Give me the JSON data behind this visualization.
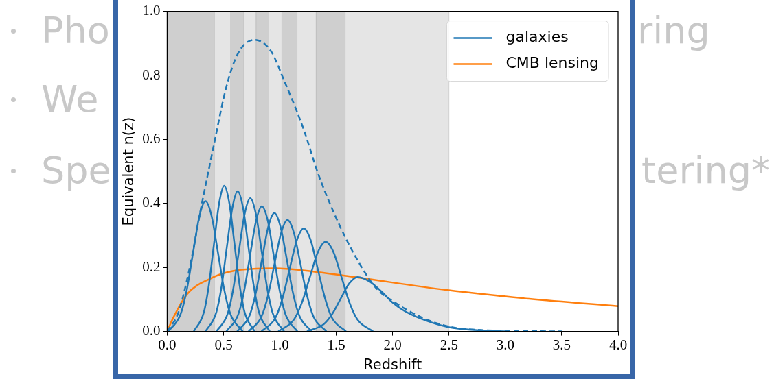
{
  "chart_data": {
    "type": "line",
    "xlabel": "Redshift",
    "ylabel": "Equivalent n(z)",
    "xlim": [
      0,
      4
    ],
    "ylim": [
      0,
      1
    ],
    "xticks": [
      {
        "value": 0,
        "label": "0.0"
      },
      {
        "value": 0.5,
        "label": "0.5"
      },
      {
        "value": 1,
        "label": "1.0"
      },
      {
        "value": 1.5,
        "label": "1.5"
      },
      {
        "value": 2,
        "label": "2.0"
      },
      {
        "value": 2.5,
        "label": "2.5"
      },
      {
        "value": 3,
        "label": "3.0"
      },
      {
        "value": 3.5,
        "label": "3.5"
      },
      {
        "value": 4,
        "label": "4.0"
      }
    ],
    "yticks": [
      {
        "value": 0,
        "label": "0.0"
      },
      {
        "value": 0.2,
        "label": "0.2"
      },
      {
        "value": 0.4,
        "label": "0.4"
      },
      {
        "value": 0.6,
        "label": "0.6"
      },
      {
        "value": 0.8,
        "label": "0.8"
      },
      {
        "value": 1,
        "label": "1.0"
      }
    ],
    "grid": false,
    "legend": "top right",
    "marker": "none",
    "line_style": "solid",
    "bands": [
      {
        "axis": "x",
        "from": 0,
        "to": 2.5,
        "color": "#e5e5e5"
      },
      {
        "axis": "x",
        "from": 0,
        "to": 0.419,
        "color": "#cfcfcf"
      },
      {
        "axis": "x",
        "from": 0.563,
        "to": 0.681,
        "color": "#cfcfcf"
      },
      {
        "axis": "x",
        "from": 0.788,
        "to": 0.902,
        "color": "#cfcfcf"
      },
      {
        "axis": "x",
        "from": 1.017,
        "to": 1.152,
        "color": "#cfcfcf"
      },
      {
        "axis": "x",
        "from": 1.321,
        "to": 1.579,
        "color": "#cfcfcf"
      }
    ],
    "series": [
      {
        "name": "galaxies",
        "color": "#1f77b4",
        "x": [
          0.01,
          0.12,
          0.175,
          0.23,
          0.285,
          0.34,
          0.395,
          0.45,
          0.505,
          0.56,
          0.67
        ],
        "values": [
          0,
          0.055,
          0.132,
          0.247,
          0.359,
          0.407,
          0.359,
          0.247,
          0.132,
          0.055,
          0
        ]
      },
      {
        "color": "#1f77b4",
        "x": [
          0.236,
          0.326,
          0.371,
          0.416,
          0.461,
          0.506,
          0.551,
          0.596,
          0.641,
          0.686,
          0.776
        ],
        "values": [
          0,
          0.061,
          0.148,
          0.276,
          0.401,
          0.455,
          0.401,
          0.276,
          0.148,
          0.061,
          0
        ]
      },
      {
        "color": "#1f77b4",
        "x": [
          0.34,
          0.435,
          0.483,
          0.53,
          0.578,
          0.625,
          0.673,
          0.72,
          0.768,
          0.815,
          0.91
        ],
        "values": [
          0,
          0.059,
          0.142,
          0.266,
          0.386,
          0.438,
          0.386,
          0.266,
          0.142,
          0.059,
          0
        ]
      },
      {
        "color": "#1f77b4",
        "x": [
          0.437,
          0.537,
          0.587,
          0.637,
          0.687,
          0.737,
          0.787,
          0.837,
          0.887,
          0.937,
          1.037
        ],
        "values": [
          0,
          0.056,
          0.135,
          0.253,
          0.367,
          0.416,
          0.367,
          0.253,
          0.135,
          0.056,
          0
        ]
      },
      {
        "color": "#1f77b4",
        "x": [
          0.525,
          0.63,
          0.683,
          0.735,
          0.788,
          0.84,
          0.893,
          0.945,
          0.998,
          1.05,
          1.155
        ],
        "values": [
          0,
          0.053,
          0.127,
          0.237,
          0.345,
          0.391,
          0.345,
          0.237,
          0.127,
          0.053,
          0
        ]
      },
      {
        "color": "#1f77b4",
        "x": [
          0.621,
          0.731,
          0.786,
          0.841,
          0.896,
          0.951,
          1.006,
          1.061,
          1.116,
          1.171,
          1.281
        ],
        "values": [
          0,
          0.05,
          0.12,
          0.225,
          0.326,
          0.37,
          0.326,
          0.225,
          0.12,
          0.05,
          0
        ]
      },
      {
        "color": "#1f77b4",
        "x": [
          0.722,
          0.837,
          0.895,
          0.952,
          1.01,
          1.067,
          1.125,
          1.182,
          1.24,
          1.297,
          1.412
        ],
        "values": [
          0,
          0.047,
          0.113,
          0.211,
          0.307,
          0.348,
          0.307,
          0.211,
          0.113,
          0.047,
          0
        ]
      },
      {
        "color": "#1f77b4",
        "x": [
          0.836,
          0.961,
          1.024,
          1.086,
          1.149,
          1.211,
          1.274,
          1.336,
          1.399,
          1.461,
          1.586
        ],
        "values": [
          0,
          0.043,
          0.105,
          0.195,
          0.284,
          0.322,
          0.284,
          0.195,
          0.105,
          0.043,
          0
        ]
      },
      {
        "color": "#1f77b4",
        "x": [
          0.986,
          1.126,
          1.196,
          1.266,
          1.336,
          1.406,
          1.476,
          1.546,
          1.616,
          1.686,
          1.826
        ],
        "values": [
          0,
          0.038,
          0.091,
          0.17,
          0.247,
          0.28,
          0.247,
          0.17,
          0.091,
          0.038,
          0
        ]
      },
      {
        "color": "#1f77b4",
        "x": [
          1.24,
          1.39,
          1.465,
          1.54,
          1.615,
          1.69,
          1.8,
          1.9,
          2.0,
          2.1,
          2.25,
          2.5,
          2.75,
          3.0
        ],
        "values": [
          0,
          0.023,
          0.055,
          0.103,
          0.15,
          0.17,
          0.155,
          0.125,
          0.09,
          0.065,
          0.04,
          0.013,
          0.004,
          0
        ]
      },
      {
        "color": "#1f77b4",
        "line_style": "dashed",
        "x": [
          0,
          0.1,
          0.2,
          0.3,
          0.36,
          0.42,
          0.526,
          0.63,
          0.774,
          0.918,
          1.042,
          1.207,
          1.342,
          1.558,
          1.765,
          1.868,
          2.0,
          2.25,
          2.5,
          2.75,
          3.0,
          3.5
        ],
        "values": [
          0,
          0.06,
          0.2,
          0.386,
          0.49,
          0.593,
          0.766,
          0.87,
          0.911,
          0.877,
          0.78,
          0.635,
          0.49,
          0.31,
          0.178,
          0.13,
          0.095,
          0.045,
          0.015,
          0.005,
          0.002,
          0
        ]
      },
      {
        "name": "CMB lensing",
        "color": "#ff7f0e",
        "x": [
          0,
          0.05,
          0.175,
          0.382,
          0.588,
          0.96,
          1.207,
          1.62,
          2.487,
          3.21,
          4.0
        ],
        "values": [
          0,
          0.04,
          0.116,
          0.165,
          0.189,
          0.197,
          0.191,
          0.172,
          0.129,
          0.102,
          0.079
        ]
      }
    ],
    "annotations": [
      "Pho",
      "ring",
      "We",
      "Spe",
      "tering*"
    ]
  }
}
